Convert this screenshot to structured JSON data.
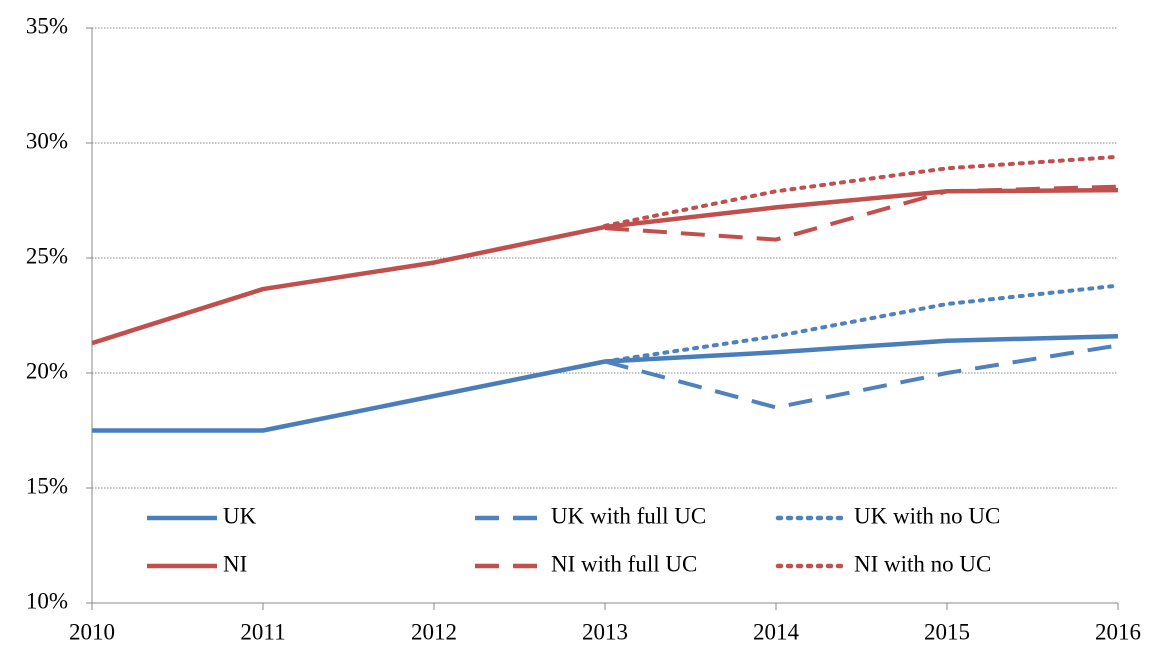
{
  "chart_data": {
    "type": "line",
    "x": [
      2010,
      2011,
      2012,
      2013,
      2014,
      2015,
      2016
    ],
    "xlim": [
      2010,
      2016
    ],
    "xticks": [
      2010,
      2011,
      2012,
      2013,
      2014,
      2015,
      2016
    ],
    "ylim": [
      10,
      35
    ],
    "yticks": [
      {
        "value": 10,
        "label": "10%"
      },
      {
        "value": 15,
        "label": "15%"
      },
      {
        "value": 20,
        "label": "20%"
      },
      {
        "value": 25,
        "label": "25%"
      },
      {
        "value": 30,
        "label": "30%"
      },
      {
        "value": 35,
        "label": "35%"
      }
    ],
    "grid": true,
    "series": [
      {
        "name": "UK",
        "color": "#4a7ebb",
        "style": "solid",
        "values": [
          17.5,
          17.5,
          19.0,
          20.5,
          20.9,
          21.4,
          21.6
        ]
      },
      {
        "name": "UK with full UC",
        "color": "#4f81bd",
        "style": "dashed",
        "values": [
          null,
          null,
          null,
          20.5,
          18.5,
          20.0,
          21.2
        ]
      },
      {
        "name": "UK with no UC",
        "color": "#4f81bd",
        "style": "dotted",
        "values": [
          null,
          null,
          null,
          20.5,
          21.6,
          23.0,
          23.8
        ]
      },
      {
        "name": "NI",
        "color": "#c0504d",
        "style": "solid",
        "values": [
          21.3,
          23.65,
          24.8,
          26.35,
          27.2,
          27.9,
          27.95
        ]
      },
      {
        "name": "NI with full UC",
        "color": "#c0504d",
        "style": "dashed",
        "values": [
          null,
          null,
          null,
          26.3,
          25.8,
          27.9,
          28.1
        ]
      },
      {
        "name": "NI with no UC",
        "color": "#c0504d",
        "style": "dotted",
        "values": [
          null,
          null,
          null,
          26.4,
          27.9,
          28.9,
          29.4
        ]
      }
    ]
  }
}
